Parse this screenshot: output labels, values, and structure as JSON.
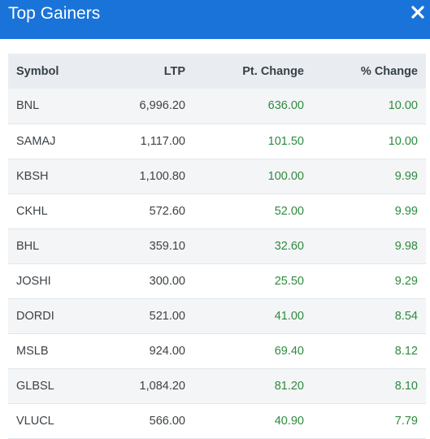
{
  "header": {
    "title": "Top Gainers",
    "close_icon": "close-icon"
  },
  "table": {
    "columns": [
      "Symbol",
      "LTP",
      "Pt. Change",
      "% Change"
    ],
    "rows": [
      [
        "BNL",
        "6,996.20",
        "636.00",
        "10.00"
      ],
      [
        "SAMAJ",
        "1,117.00",
        "101.50",
        "10.00"
      ],
      [
        "KBSH",
        "1,100.80",
        "100.00",
        "9.99"
      ],
      [
        "CKHL",
        "572.60",
        "52.00",
        "9.99"
      ],
      [
        "BHL",
        "359.10",
        "32.60",
        "9.98"
      ],
      [
        "JOSHI",
        "300.00",
        "25.50",
        "9.29"
      ],
      [
        "DORDI",
        "521.00",
        "41.00",
        "8.54"
      ],
      [
        "MSLB",
        "924.00",
        "69.40",
        "8.12"
      ],
      [
        "GLBSL",
        "1,084.20",
        "81.20",
        "8.10"
      ],
      [
        "VLUCL",
        "566.00",
        "40.90",
        "7.79"
      ]
    ]
  },
  "colors": {
    "header_bg": "#1a73d9",
    "positive": "#2e8b3e"
  }
}
